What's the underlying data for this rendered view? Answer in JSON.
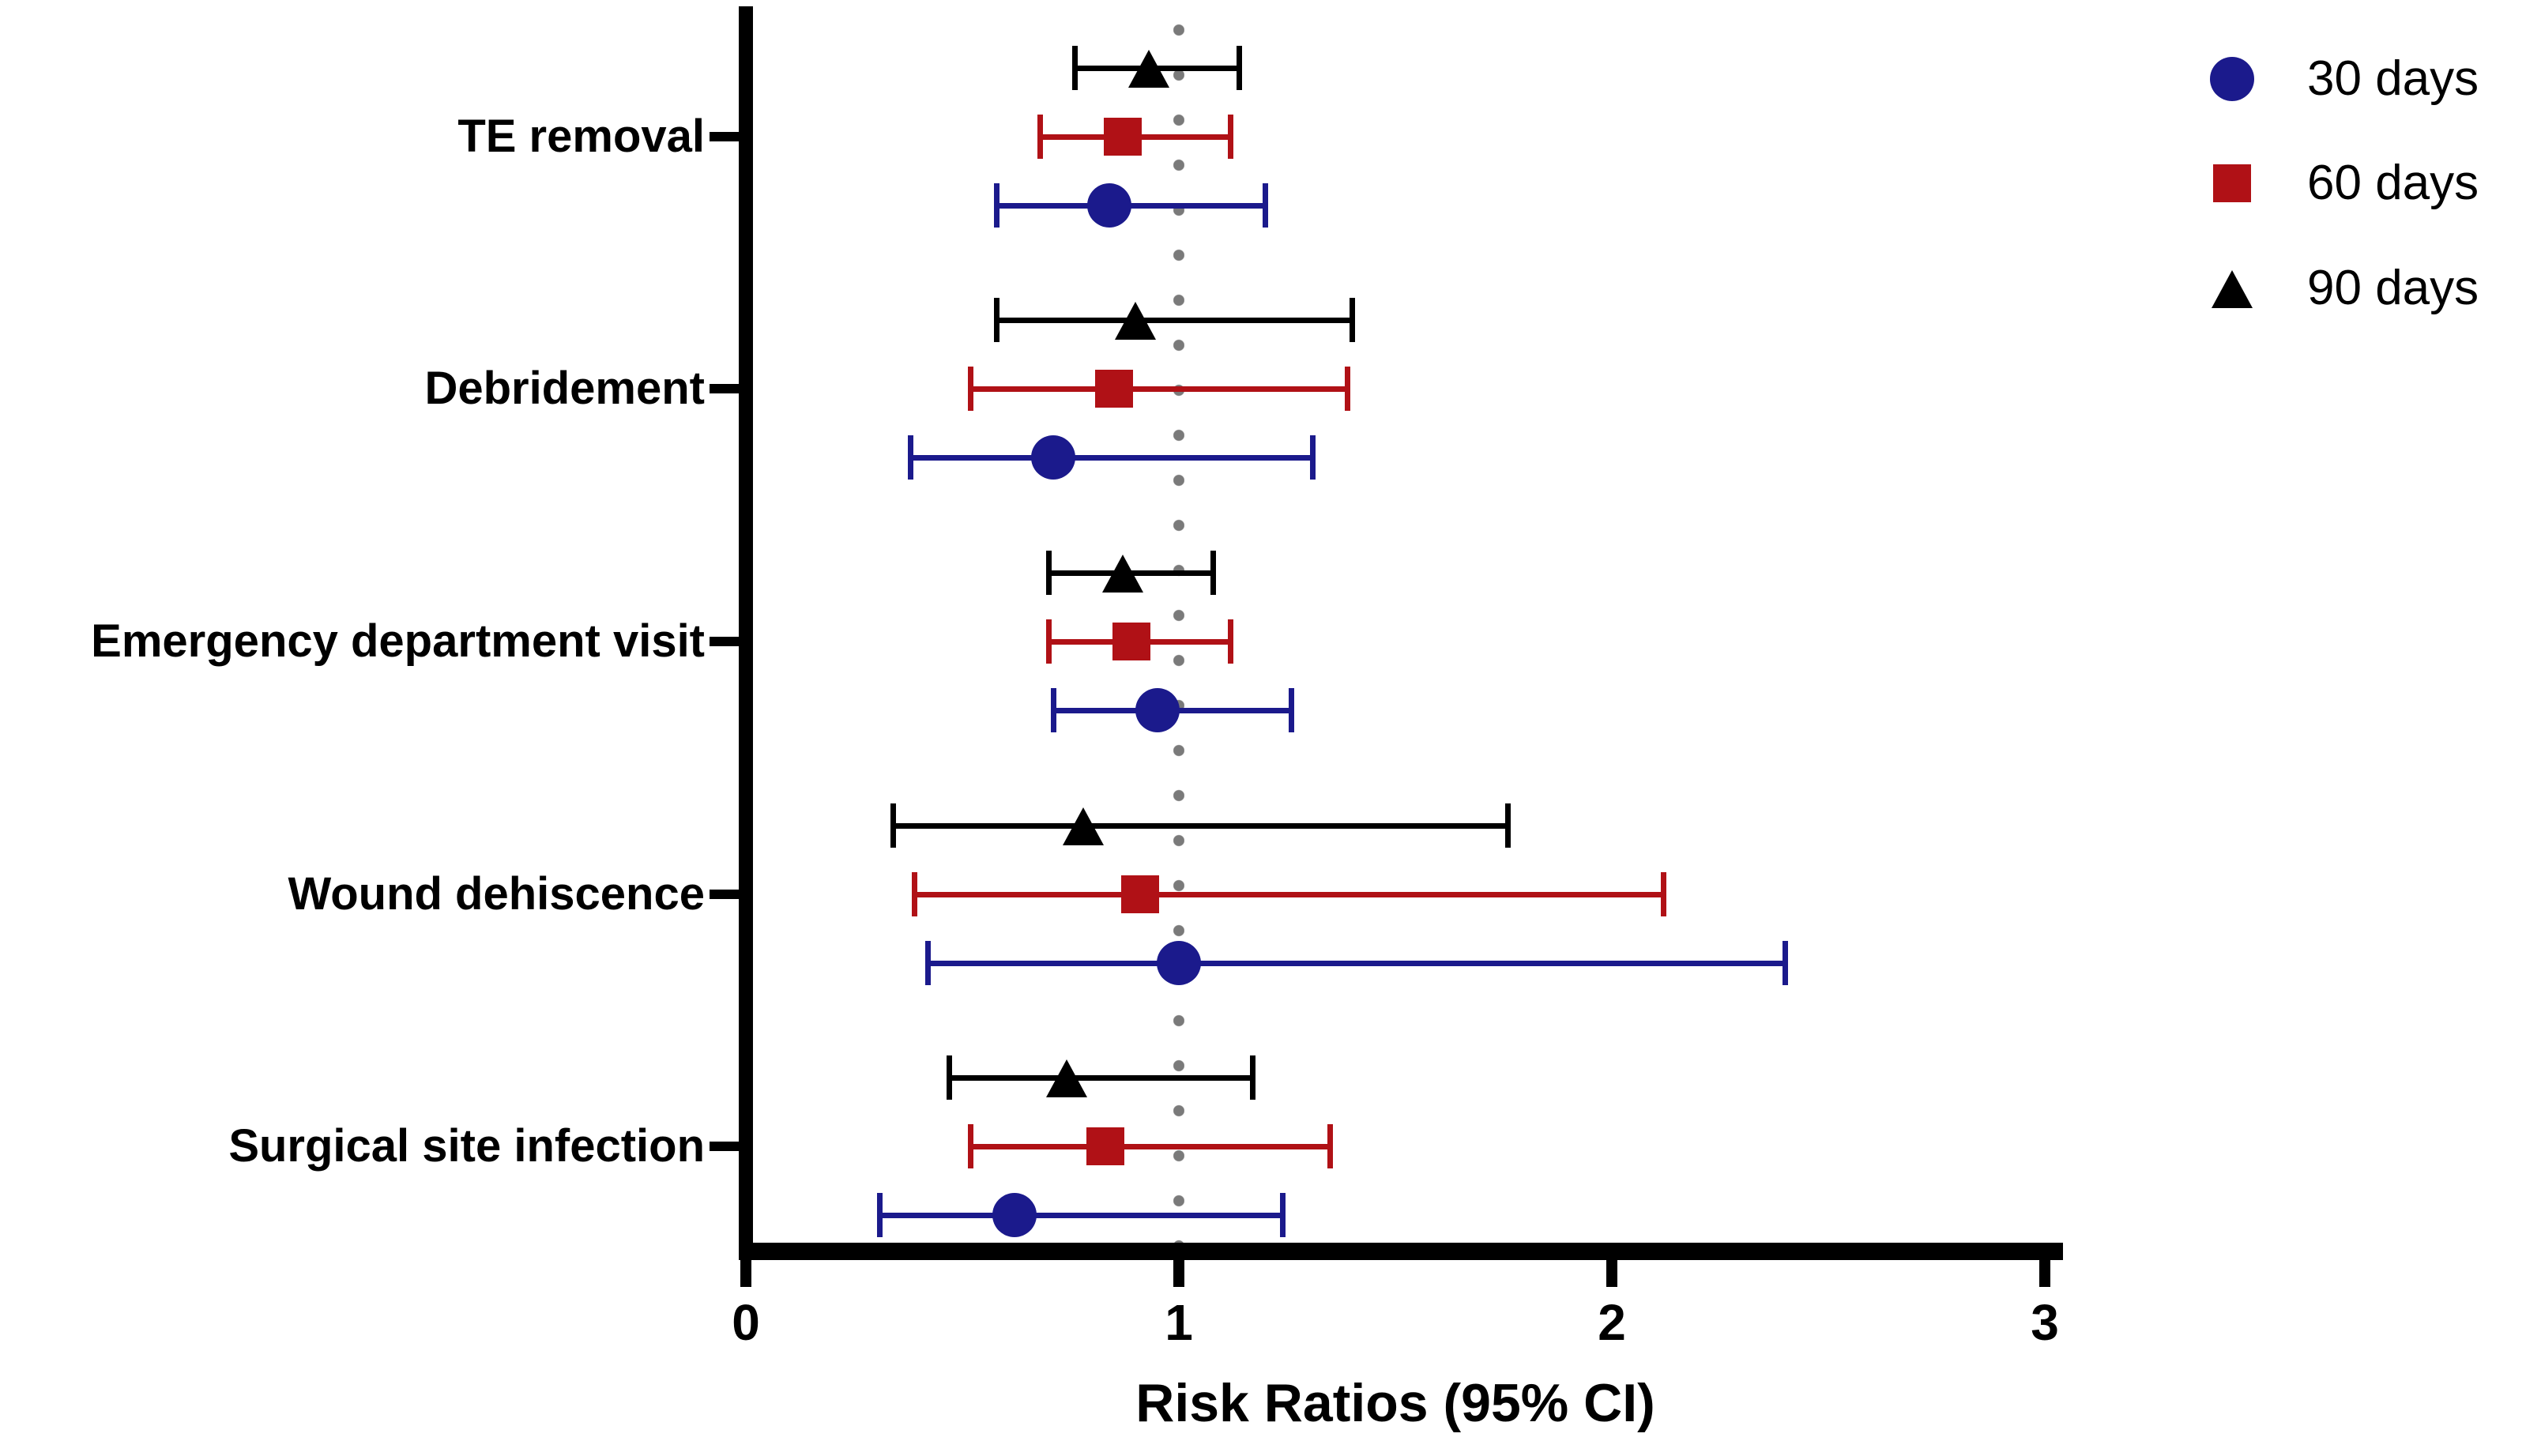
{
  "chart_data": {
    "type": "scatter",
    "subtype": "forest-plot-with-error-bars",
    "title": "",
    "xlabel": "Risk Ratios (95% CI)",
    "ylabel": "",
    "xlim": [
      0,
      3
    ],
    "x_ticks": [
      0,
      1,
      2,
      3
    ],
    "grid": false,
    "background": "#ffffff",
    "axis_color": "#000000",
    "reference_line": {
      "x": 1,
      "style": "dotted",
      "color": "#7a7a7a"
    },
    "legend_position": "top-right",
    "categories": [
      "TE removal",
      "Debridement",
      "Emergency department visit",
      "Wound dehiscence",
      "Surgical site infection"
    ],
    "series": [
      {
        "name": "30 days",
        "marker": "circle",
        "color": "#1b1a8c",
        "group_row": 2,
        "points": [
          {
            "category": "TE removal",
            "rr": 0.84,
            "ci_low": 0.58,
            "ci_high": 1.2
          },
          {
            "category": "Debridement",
            "rr": 0.71,
            "ci_low": 0.38,
            "ci_high": 1.31
          },
          {
            "category": "Emergency department visit",
            "rr": 0.95,
            "ci_low": 0.71,
            "ci_high": 1.26
          },
          {
            "category": "Wound dehiscence",
            "rr": 1.0,
            "ci_low": 0.42,
            "ci_high": 2.4
          },
          {
            "category": "Surgical site infection",
            "rr": 0.62,
            "ci_low": 0.31,
            "ci_high": 1.24
          }
        ]
      },
      {
        "name": "60 days",
        "marker": "square",
        "color": "#b01116",
        "group_row": 1,
        "points": [
          {
            "category": "TE removal",
            "rr": 0.87,
            "ci_low": 0.68,
            "ci_high": 1.12
          },
          {
            "category": "Debridement",
            "rr": 0.85,
            "ci_low": 0.52,
            "ci_high": 1.39
          },
          {
            "category": "Emergency department visit",
            "rr": 0.89,
            "ci_low": 0.7,
            "ci_high": 1.12
          },
          {
            "category": "Wound dehiscence",
            "rr": 0.91,
            "ci_low": 0.39,
            "ci_high": 2.12
          },
          {
            "category": "Surgical site infection",
            "rr": 0.83,
            "ci_low": 0.52,
            "ci_high": 1.35
          }
        ]
      },
      {
        "name": "90 days",
        "marker": "triangle",
        "color": "#000000",
        "group_row": 0,
        "points": [
          {
            "category": "TE removal",
            "rr": 0.93,
            "ci_low": 0.76,
            "ci_high": 1.14
          },
          {
            "category": "Debridement",
            "rr": 0.9,
            "ci_low": 0.58,
            "ci_high": 1.4
          },
          {
            "category": "Emergency department visit",
            "rr": 0.87,
            "ci_low": 0.7,
            "ci_high": 1.08
          },
          {
            "category": "Wound dehiscence",
            "rr": 0.78,
            "ci_low": 0.34,
            "ci_high": 1.76
          },
          {
            "category": "Surgical site infection",
            "rr": 0.74,
            "ci_low": 0.47,
            "ci_high": 1.17
          }
        ]
      }
    ]
  }
}
